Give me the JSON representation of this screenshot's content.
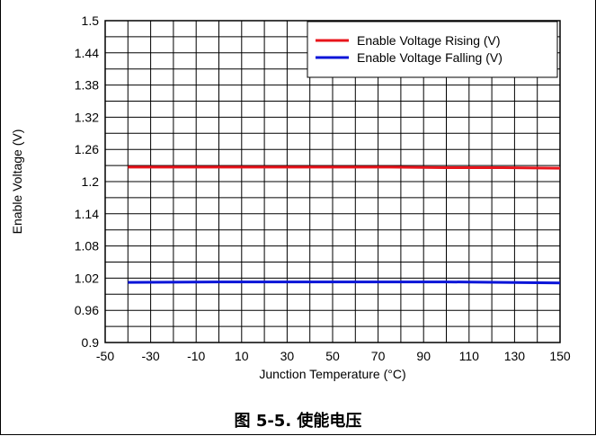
{
  "chart_data": {
    "type": "line",
    "title": "",
    "xlabel": "Junction Temperature (°C)",
    "ylabel": "Enable Voltage (V)",
    "xlim": [
      -50,
      150
    ],
    "ylim": [
      0.9,
      1.5
    ],
    "x_ticks": [
      -50,
      -30,
      -10,
      10,
      30,
      50,
      70,
      90,
      110,
      130,
      150
    ],
    "y_ticks": [
      "0.9",
      "0.96",
      "1.02",
      "1.08",
      "1.14",
      "1.2",
      "1.26",
      "1.32",
      "1.38",
      "1.44",
      "1.5"
    ],
    "grid": true,
    "minor_grid_x_step": 10,
    "legend_position": "top-right",
    "series": [
      {
        "name": "Enable Voltage Rising (V)",
        "color": "#e8141b",
        "x": [
          -40,
          0,
          25,
          50,
          75,
          100,
          125,
          150
        ],
        "y": [
          1.227,
          1.227,
          1.227,
          1.227,
          1.227,
          1.226,
          1.226,
          1.225
        ]
      },
      {
        "name": "Enable Voltage Falling (V)",
        "color": "#0a14d8",
        "x": [
          -40,
          0,
          25,
          50,
          75,
          100,
          125,
          150
        ],
        "y": [
          1.012,
          1.013,
          1.013,
          1.013,
          1.013,
          1.013,
          1.012,
          1.011
        ]
      }
    ]
  },
  "caption": "图 5-5. 使能电压"
}
